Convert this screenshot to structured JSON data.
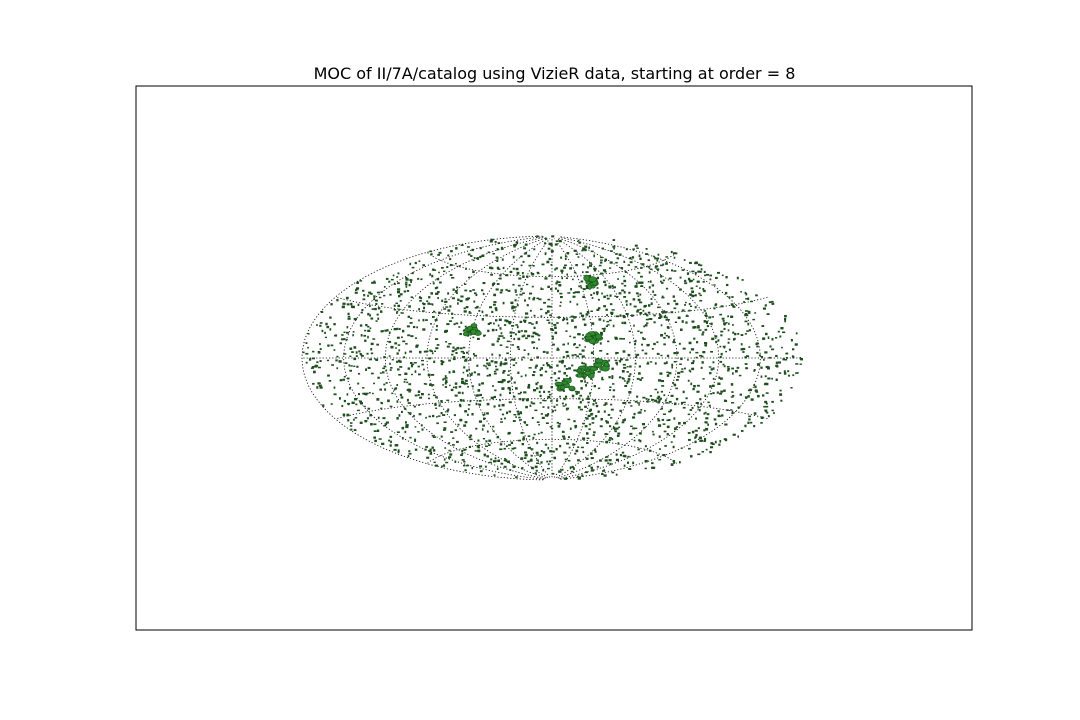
{
  "figure": {
    "title": "MOC of II/7A/catalog using VizieR data, starting at order = 8"
  },
  "map": {
    "projection": "aitoff",
    "graticule_style": "dotted",
    "graticule_color": "#000000",
    "frame_color": "#000000",
    "coverage_fill": "#2e8b2e",
    "coverage_edge": "#1f4f1f",
    "background": "#ffffff"
  },
  "coverage": {
    "catalog": "II/7A/catalog",
    "source": "VizieR",
    "order": 8,
    "point_count": 2300,
    "clusters": [
      {
        "name": "cluster-upper-right",
        "lon": -40,
        "lat": 55
      },
      {
        "name": "cluster-left",
        "lon": 60,
        "lat": 20
      },
      {
        "name": "cluster-center-upper",
        "lon": -30,
        "lat": 15
      },
      {
        "name": "cluster-center-a",
        "lon": -25,
        "lat": -10
      },
      {
        "name": "cluster-center-b",
        "lon": -10,
        "lat": -20
      },
      {
        "name": "cluster-center-c",
        "lon": -35,
        "lat": -5
      }
    ]
  }
}
